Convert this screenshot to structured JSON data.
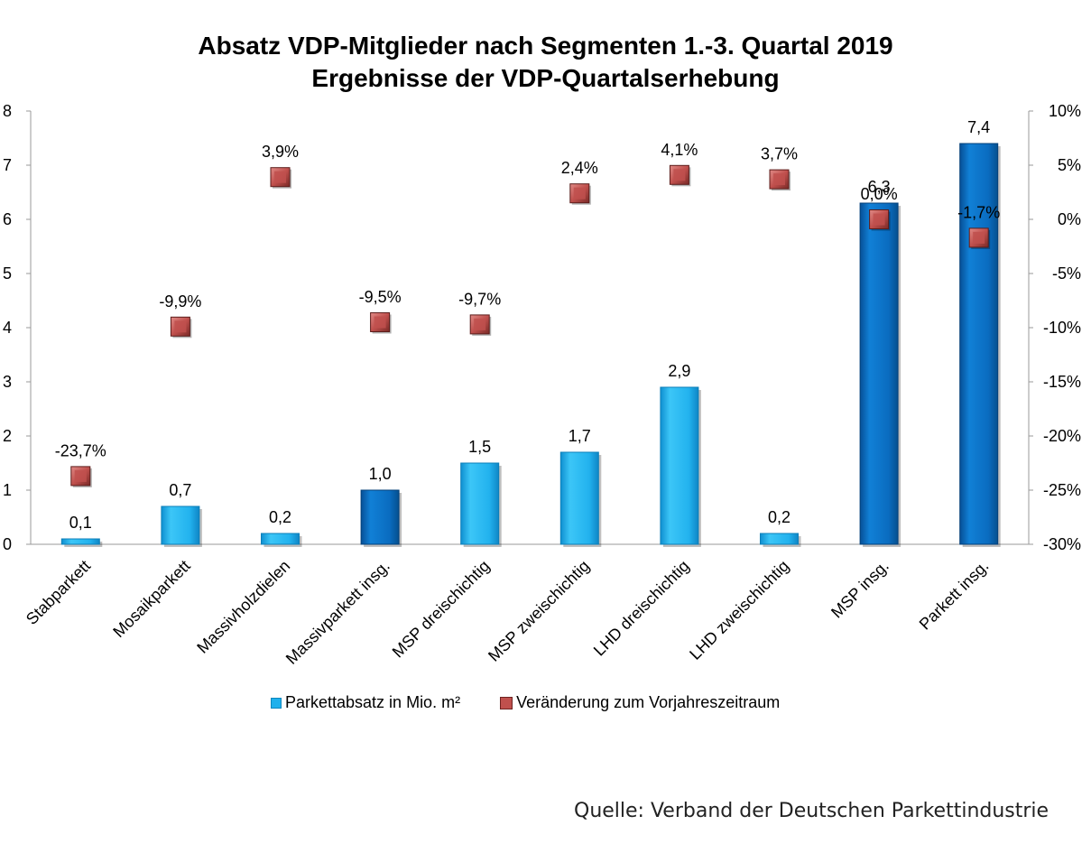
{
  "source": "Quelle: Verband der Deutschen Parkettindustrie",
  "chart_data": {
    "type": "bar",
    "title": "Absatz VDP-Mitglieder nach Segmenten 1.-3. Quartal 2019",
    "subtitle": "Ergebnisse der VDP-Quartalserhebung",
    "categories": [
      "Stabparkett",
      "Mosaikparkett",
      "Massivholzdielen",
      "Massivparkett insg.",
      "MSP dreischichtig",
      "MSP zweischichtig",
      "LHD dreischichtig",
      "LHD zweischichtig",
      "MSP insg.",
      "Parkett insg."
    ],
    "series": [
      {
        "name": "Parkettabsatz in Mio. m²",
        "type": "bar",
        "axis": "left",
        "values": [
          0.1,
          0.7,
          0.2,
          1.0,
          1.5,
          1.7,
          2.9,
          0.2,
          6.3,
          7.4
        ],
        "labels": [
          "0,1",
          "0,7",
          "0,2",
          "1,0",
          "1,5",
          "1,7",
          "2,9",
          "0,2",
          "6,3",
          "7,4"
        ],
        "total_flags": [
          false,
          false,
          false,
          true,
          false,
          false,
          false,
          false,
          true,
          true
        ]
      },
      {
        "name": "Veränderung zum Vorjahreszeitraum",
        "type": "marker",
        "axis": "right",
        "values": [
          -23.7,
          -9.9,
          3.9,
          -9.5,
          -9.7,
          2.4,
          4.1,
          3.7,
          0.0,
          -1.7
        ],
        "labels": [
          "-23,7%",
          "-9,9%",
          "3,9%",
          "-9,5%",
          "-9,7%",
          "2,4%",
          "4,1%",
          "3,7%",
          "0,0%",
          "-1,7%"
        ]
      }
    ],
    "y_left": {
      "min": 0,
      "max": 8,
      "ticks": [
        "0",
        "1",
        "2",
        "3",
        "4",
        "5",
        "6",
        "7",
        "8"
      ]
    },
    "y_right": {
      "min": -30,
      "max": 10,
      "ticks": [
        "-30%",
        "-25%",
        "-20%",
        "-15%",
        "-10%",
        "-5%",
        "0%",
        "5%",
        "10%"
      ]
    },
    "grid": false,
    "legend_position": "bottom",
    "colors": {
      "bar_light": "#1fb0ec",
      "bar_dark": "#0a6cc0",
      "marker": "#c0504d"
    }
  }
}
